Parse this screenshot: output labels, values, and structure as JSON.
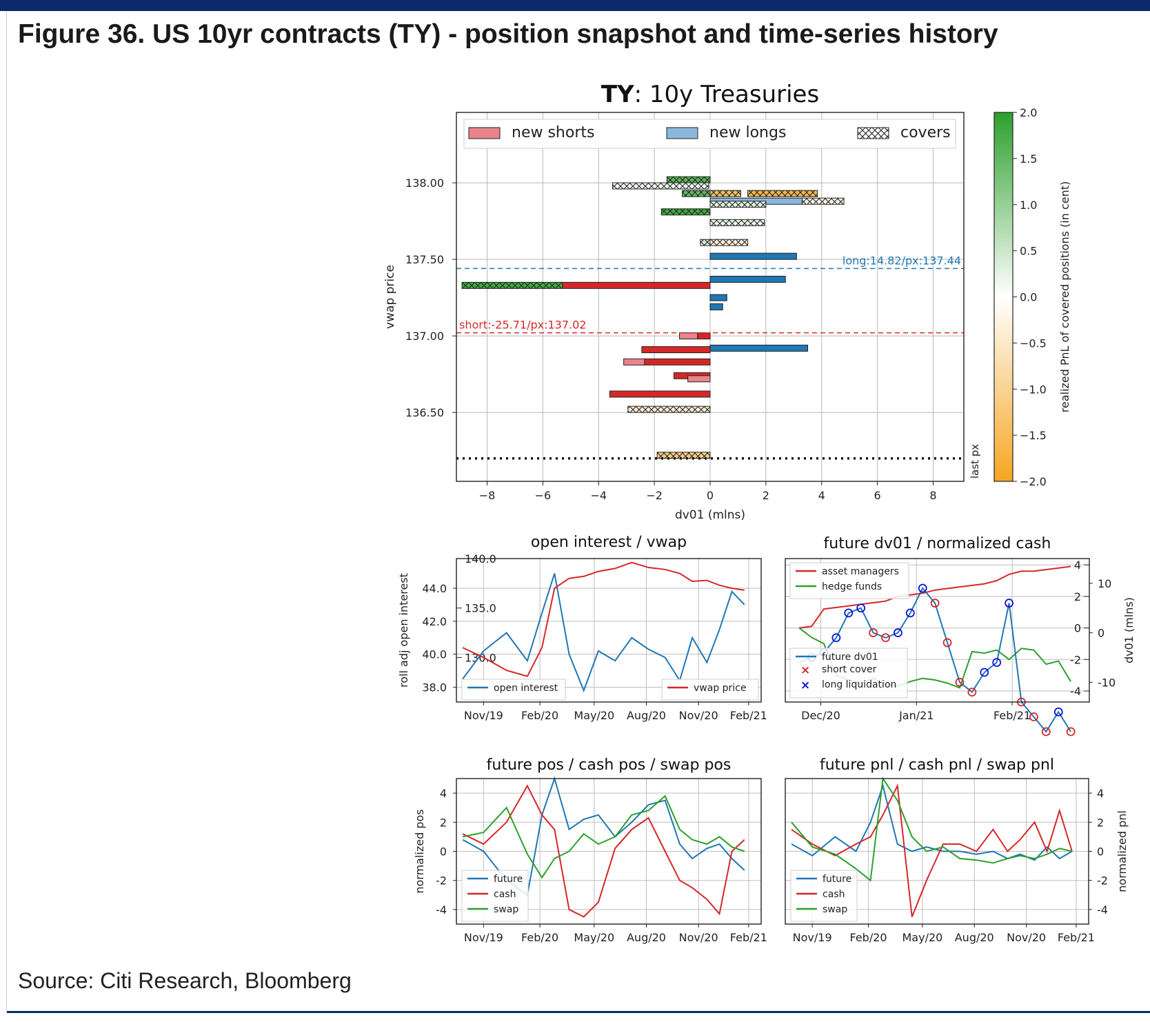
{
  "figure": {
    "title": "Figure 36. US 10yr contracts (TY) - position snapshot and time-series history",
    "source": "Source: Citi Research, Bloomberg"
  },
  "chart_data": [
    {
      "type": "bar",
      "title_bold": "TY",
      "title_rest": ": 10y Treasuries",
      "xlabel": "dv01 (mlns)",
      "ylabel": "vwap price",
      "xlim": [
        -9.1,
        9.1
      ],
      "ylim": [
        136.05,
        138.46
      ],
      "xticks": [
        -8,
        -6,
        -4,
        -2,
        0,
        2,
        4,
        6,
        8
      ],
      "xtick_labels": [
        "−8",
        "−6",
        "−4",
        "−2",
        "0",
        "2",
        "4",
        "6",
        "8"
      ],
      "yticks": [
        136.5,
        137.0,
        137.5,
        138.0
      ],
      "ytick_labels": [
        "136.50",
        "137.00",
        "137.50",
        "138.00"
      ],
      "grid": true,
      "legend": {
        "placement": "top",
        "entries": [
          "new shorts",
          "new longs",
          "covers"
        ]
      },
      "colors": {
        "new_shorts": "#d62728",
        "new_shorts_light": "#e8848a",
        "new_longs": "#1f77b4",
        "new_longs_light": "#8ab8dc"
      },
      "reference_lines": [
        {
          "label": "long:14.82/px:137.44",
          "price": 137.44,
          "color": "#1f77b4"
        },
        {
          "label": "short:-25.71/px:137.02",
          "price": 137.02,
          "color": "#d62728"
        }
      ],
      "last_px": {
        "label": "last px",
        "price": 136.2
      },
      "bars": [
        {
          "kind": "cover",
          "price": 138.02,
          "x0": -1.55,
          "x1": 0.0,
          "pnl": 1.6
        },
        {
          "kind": "cover",
          "price": 137.98,
          "x0": -3.5,
          "x1": -0.05,
          "pnl": 0.1
        },
        {
          "kind": "cover",
          "price": 137.93,
          "x0": -1.0,
          "x1": 0.0,
          "pnl": 1.5
        },
        {
          "kind": "cover",
          "price": 137.93,
          "x0": 0.0,
          "x1": 1.1,
          "pnl": -1.4
        },
        {
          "kind": "cover",
          "price": 137.93,
          "x0": 1.35,
          "x1": 3.85,
          "pnl": -1.6
        },
        {
          "kind": "long",
          "price": 137.88,
          "x0": 0.0,
          "x1": 3.3,
          "shade": "light"
        },
        {
          "kind": "cover",
          "price": 137.88,
          "x0": 3.3,
          "x1": 4.8,
          "pnl": -0.2
        },
        {
          "kind": "cover",
          "price": 137.86,
          "x0": 0.0,
          "x1": 2.0,
          "pnl": 0.3
        },
        {
          "kind": "cover",
          "price": 137.81,
          "x0": -1.75,
          "x1": 0.0,
          "pnl": 1.8
        },
        {
          "kind": "cover",
          "price": 137.74,
          "x0": 0.0,
          "x1": 1.95,
          "pnl": 0.2
        },
        {
          "kind": "cover",
          "price": 137.61,
          "x0": -0.35,
          "x1": 0.0,
          "pnl": 0.4
        },
        {
          "kind": "cover",
          "price": 137.61,
          "x0": 0.0,
          "x1": 1.35,
          "pnl": -0.3
        },
        {
          "kind": "long",
          "price": 137.52,
          "x0": 0.0,
          "x1": 3.1,
          "shade": "dark"
        },
        {
          "kind": "long",
          "price": 137.37,
          "x0": 0.0,
          "x1": 2.7,
          "shade": "dark"
        },
        {
          "kind": "short",
          "price": 137.33,
          "x0": -5.3,
          "x1": 0.0,
          "shade": "dark"
        },
        {
          "kind": "cover",
          "price": 137.33,
          "x0": -8.9,
          "x1": -5.3,
          "pnl": 1.8
        },
        {
          "kind": "long",
          "price": 137.25,
          "x0": 0.0,
          "x1": 0.6,
          "shade": "dark"
        },
        {
          "kind": "long",
          "price": 137.19,
          "x0": 0.0,
          "x1": 0.45,
          "shade": "dark"
        },
        {
          "kind": "short",
          "price": 137.0,
          "x0": -1.1,
          "x1": -0.45,
          "shade": "light"
        },
        {
          "kind": "short",
          "price": 137.0,
          "x0": -0.45,
          "x1": 0.0,
          "shade": "dark"
        },
        {
          "kind": "long",
          "price": 136.92,
          "x0": 0.0,
          "x1": 3.5,
          "shade": "dark"
        },
        {
          "kind": "short",
          "price": 136.91,
          "x0": -2.45,
          "x1": 0.0,
          "shade": "dark"
        },
        {
          "kind": "short",
          "price": 136.83,
          "x0": -3.1,
          "x1": -2.35,
          "shade": "light"
        },
        {
          "kind": "short",
          "price": 136.83,
          "x0": -2.35,
          "x1": 0.0,
          "shade": "dark"
        },
        {
          "kind": "short",
          "price": 136.74,
          "x0": -1.3,
          "x1": 0.0,
          "shade": "dark"
        },
        {
          "kind": "short",
          "price": 136.72,
          "x0": -0.8,
          "x1": 0.0,
          "shade": "light"
        },
        {
          "kind": "short",
          "price": 136.62,
          "x0": -3.6,
          "x1": 0.0,
          "shade": "dark"
        },
        {
          "kind": "cover",
          "price": 136.52,
          "x0": -2.95,
          "x1": 0.0,
          "pnl": -0.4
        },
        {
          "kind": "cover",
          "price": 136.22,
          "x0": -1.9,
          "x1": 0.0,
          "pnl": -1.1
        }
      ],
      "colorbar": {
        "label": "realized PnL of covered positions (in cent)",
        "range": [
          -2.0,
          2.0
        ],
        "ticks": [
          2.0,
          1.5,
          1.0,
          0.5,
          0.0,
          -0.5,
          -1.0,
          -1.5,
          -2.0
        ],
        "tick_labels": [
          "2.0",
          "1.5",
          "1.0",
          "0.5",
          "0.0",
          "−0.5",
          "−1.0",
          "−1.5",
          "−2.0"
        ],
        "colors": {
          "top": "#2ca02c",
          "middle": "#ffffff",
          "bottom": "#f5a623"
        }
      }
    },
    {
      "type": "line",
      "title": "open interest / vwap",
      "ylabel": "roll adj open interest",
      "x": [
        2019.75,
        2019.85,
        2019.96,
        2020.06,
        2020.13,
        2020.19,
        2020.26,
        2020.33,
        2020.4,
        2020.48,
        2020.56,
        2020.64,
        2020.72,
        2020.79,
        2020.85,
        2020.92,
        2020.98,
        2021.04,
        2021.1
      ],
      "xticks": [
        2019.85,
        2020.12,
        2020.38,
        2020.63,
        2020.88,
        2021.12
      ],
      "xtick_labels": [
        "Nov/19",
        "Feb/20",
        "May/20",
        "Aug/20",
        "Nov/20",
        "Feb/21"
      ],
      "xlim": [
        2019.72,
        2021.18
      ],
      "yticks_left": [
        38.0,
        40.0,
        42.0,
        44.0
      ],
      "ytick_labels_left": [
        "38.0",
        "40.0",
        "42.0",
        "44.0"
      ],
      "ylim_left": [
        37.1,
        45.8
      ],
      "yticks_right": [
        130.0,
        135.0,
        140.0
      ],
      "ytick_labels_right": [
        "130.0",
        "135.0",
        "140.0"
      ],
      "ylim_right": [
        125.5,
        140.0
      ],
      "grid": true,
      "legend": "bottom",
      "series": [
        {
          "name": "open interest",
          "axis": "left",
          "color": "#1f77b4",
          "values": [
            38.5,
            40.2,
            41.3,
            39.6,
            42.5,
            44.9,
            40.0,
            37.8,
            40.2,
            39.6,
            41.0,
            40.3,
            39.8,
            38.4,
            41.0,
            39.5,
            41.5,
            43.8,
            43.0
          ]
        },
        {
          "name": "vwap price",
          "axis": "right",
          "color": "#d62728",
          "values": [
            131.0,
            130.0,
            128.7,
            128.1,
            131.0,
            137.0,
            138.0,
            138.2,
            138.7,
            139.0,
            139.6,
            139.1,
            138.9,
            138.5,
            137.7,
            137.8,
            137.3,
            137.0,
            136.8
          ]
        }
      ]
    },
    {
      "type": "line",
      "title": "future dv01 / normalized cash",
      "ylabel_right": "dv01 (mlns)",
      "x": [
        0,
        4,
        8,
        12,
        16,
        20,
        24,
        28,
        32,
        36,
        40,
        44,
        48,
        52,
        56,
        60,
        64,
        68,
        72,
        76,
        80,
        84,
        88
      ],
      "xticks": [
        7,
        38,
        69
      ],
      "xtick_labels": [
        "Dec/20",
        "Jan/21",
        "Feb/21"
      ],
      "xlim": [
        -4.5,
        94
      ],
      "yticks_inner": [
        -4,
        -2,
        0,
        2,
        4
      ],
      "ytick_labels_inner": [
        "-4",
        "-2",
        "0",
        "2",
        "4"
      ],
      "ylim_inner": [
        -4.7,
        4.4
      ],
      "yticks_right": [
        -10,
        0,
        10
      ],
      "ytick_labels_right": [
        "-10",
        "0",
        "10"
      ],
      "ylim_right": [
        -14,
        15
      ],
      "grid": true,
      "legend": "top-left and bottom-left",
      "series": [
        {
          "name": "asset managers",
          "axis": "inner",
          "color": "#d62728",
          "values": [
            0.0,
            0.1,
            1.2,
            1.3,
            1.4,
            1.5,
            1.6,
            1.7,
            2.0,
            2.1,
            2.2,
            2.4,
            2.5,
            2.6,
            2.7,
            2.8,
            3.0,
            3.4,
            3.6,
            3.6,
            3.7,
            3.8,
            3.9
          ]
        },
        {
          "name": "hedge funds",
          "axis": "inner",
          "color": "#2ca02c",
          "values": [
            0.0,
            -0.6,
            -1.0,
            -3.0,
            -3.3,
            -3.5,
            -3.2,
            -3.6,
            -3.7,
            -3.4,
            -3.2,
            -3.3,
            -3.5,
            -3.8,
            -1.5,
            -1.6,
            -1.4,
            -2.0,
            -1.3,
            -1.4,
            -2.3,
            -2.1,
            -3.4
          ]
        },
        {
          "name": "future dv01",
          "axis": "right",
          "color": "#1f77b4",
          "values": [
            -6,
            -5,
            -4,
            -1,
            4,
            5,
            0,
            -1,
            0,
            4,
            9,
            6,
            -2,
            -10,
            -12,
            -8,
            -6,
            6,
            -14,
            -17,
            -20,
            -16,
            -20
          ]
        }
      ],
      "markers": [
        {
          "name": "short cover",
          "symbol": "x",
          "color": "#d62728"
        },
        {
          "name": "long liquidation",
          "symbol": "x",
          "color": "#1111dd"
        }
      ]
    },
    {
      "type": "line",
      "title": "future pos / cash pos / swap pos",
      "ylabel": "normalized pos",
      "x": [
        2019.75,
        2019.85,
        2019.96,
        2020.06,
        2020.13,
        2020.19,
        2020.26,
        2020.33,
        2020.4,
        2020.48,
        2020.56,
        2020.64,
        2020.72,
        2020.79,
        2020.85,
        2020.92,
        2020.98,
        2021.04,
        2021.1
      ],
      "xticks": [
        2019.85,
        2020.12,
        2020.38,
        2020.63,
        2020.88,
        2021.12
      ],
      "xtick_labels": [
        "Nov/19",
        "Feb/20",
        "May/20",
        "Aug/20",
        "Nov/20",
        "Feb/21"
      ],
      "xlim": [
        2019.72,
        2021.18
      ],
      "yticks": [
        -4,
        -2,
        0,
        2,
        4
      ],
      "ytick_labels": [
        "-4",
        "-2",
        "0",
        "2",
        "4"
      ],
      "ylim": [
        -5.0,
        5.0
      ],
      "grid": true,
      "legend": "bottom-left",
      "series": [
        {
          "name": "future",
          "color": "#1f77b4",
          "values": [
            0.8,
            0.0,
            -2.0,
            -3.0,
            2.5,
            5.0,
            1.5,
            2.2,
            2.5,
            1.0,
            2.0,
            3.2,
            3.5,
            0.5,
            -0.5,
            0.2,
            0.5,
            -0.5,
            -1.3
          ]
        },
        {
          "name": "cash",
          "color": "#d62728",
          "values": [
            1.2,
            0.5,
            2.0,
            4.5,
            2.5,
            1.5,
            -4.0,
            -4.5,
            -3.5,
            0.2,
            1.5,
            2.3,
            0.0,
            -2.0,
            -2.5,
            -3.3,
            -4.3,
            0.0,
            0.8
          ]
        },
        {
          "name": "swap",
          "color": "#2ca02c",
          "values": [
            1.0,
            1.3,
            3.0,
            -0.2,
            -1.8,
            -0.5,
            0.0,
            1.2,
            0.5,
            1.0,
            2.5,
            2.8,
            3.8,
            1.5,
            0.8,
            0.5,
            1.0,
            0.3,
            0.0
          ]
        }
      ]
    },
    {
      "type": "line",
      "title": "future pnl / cash pnl / swap pnl",
      "ylabel_right": "normalized pnl",
      "x": [
        2019.75,
        2019.85,
        2019.96,
        2020.06,
        2020.13,
        2020.19,
        2020.26,
        2020.33,
        2020.4,
        2020.48,
        2020.56,
        2020.64,
        2020.72,
        2020.79,
        2020.85,
        2020.92,
        2020.98,
        2021.04,
        2021.1
      ],
      "xticks": [
        2019.85,
        2020.12,
        2020.38,
        2020.63,
        2020.88,
        2021.12
      ],
      "xtick_labels": [
        "Nov/19",
        "Feb/20",
        "May/20",
        "Aug/20",
        "Nov/20",
        "Feb/21"
      ],
      "xlim": [
        2019.72,
        2021.18
      ],
      "yticks": [
        -4,
        -2,
        0,
        2,
        4
      ],
      "ytick_labels": [
        "-4",
        "-2",
        "0",
        "2",
        "4"
      ],
      "ylim": [
        -5.0,
        5.0
      ],
      "grid": true,
      "legend": "bottom-left",
      "series": [
        {
          "name": "future",
          "color": "#1f77b4",
          "values": [
            0.5,
            -0.3,
            1.0,
            0.0,
            2.0,
            4.5,
            0.5,
            0.0,
            0.3,
            0.0,
            0.0,
            -0.2,
            0.0,
            -0.5,
            -0.2,
            -0.6,
            0.3,
            -0.5,
            0.0
          ]
        },
        {
          "name": "cash",
          "color": "#d62728",
          "values": [
            1.5,
            0.5,
            -0.3,
            0.5,
            1.0,
            2.5,
            4.5,
            -4.5,
            -2.0,
            0.5,
            0.5,
            0.0,
            1.5,
            0.0,
            0.8,
            2.0,
            0.0,
            2.8,
            0.0
          ]
        },
        {
          "name": "swap",
          "color": "#2ca02c",
          "values": [
            2.0,
            0.3,
            -0.2,
            -1.2,
            -2.0,
            5.0,
            3.5,
            1.0,
            0.0,
            0.3,
            -0.5,
            -0.6,
            -0.8,
            -0.5,
            -0.3,
            -0.5,
            -0.2,
            0.2,
            0.0
          ]
        }
      ]
    }
  ]
}
